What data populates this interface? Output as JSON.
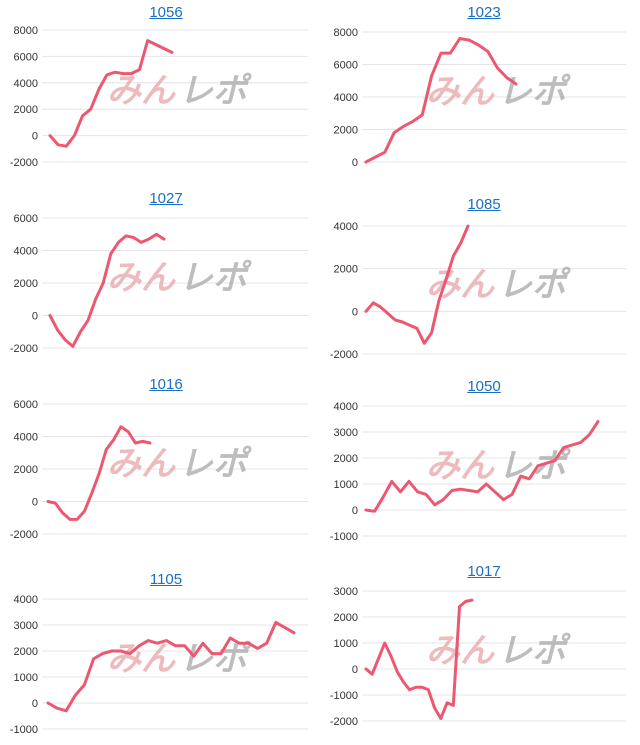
{
  "colors": {
    "line": "#ee5770",
    "link": "#1a6fc4",
    "grid": "#e4e4e4"
  },
  "chart_data": [
    {
      "type": "line",
      "title": "1056",
      "yticks": [
        -2000,
        0,
        2000,
        4000,
        6000,
        8000
      ],
      "ylim": [
        -2000,
        8000
      ],
      "values": [
        0,
        -700,
        -800,
        0,
        1500,
        2000,
        3500,
        4600,
        4800,
        4700,
        4700,
        5000,
        7200,
        6900,
        6600,
        6300
      ]
    },
    {
      "type": "line",
      "title": "1023",
      "yticks": [
        0,
        2000,
        4000,
        6000,
        8000
      ],
      "ylim": [
        0,
        8000
      ],
      "values": [
        0,
        300,
        600,
        1800,
        2200,
        2500,
        2900,
        5300,
        6700,
        6700,
        7600,
        7500,
        7200,
        6800,
        5800,
        5200,
        4800
      ]
    },
    {
      "type": "line",
      "title": "1027",
      "yticks": [
        -2000,
        0,
        2000,
        4000,
        6000
      ],
      "ylim": [
        -2000,
        6000
      ],
      "values": [
        0,
        -900,
        -1500,
        -1900,
        -1000,
        -300,
        1000,
        2000,
        3800,
        4500,
        4900,
        4800,
        4500,
        4700,
        5000,
        4700
      ]
    },
    {
      "type": "line",
      "title": "1085",
      "yticks": [
        -2000,
        0,
        2000,
        4000
      ],
      "ylim": [
        -2000,
        4000
      ],
      "values": [
        0,
        400,
        200,
        -100,
        -400,
        -500,
        -650,
        -800,
        -1500,
        -1000,
        500,
        1500,
        2600,
        3200,
        4000
      ]
    },
    {
      "type": "line",
      "title": "1016",
      "yticks": [
        -2000,
        0,
        2000,
        4000,
        6000
      ],
      "ylim": [
        -2000,
        6000
      ],
      "values": [
        0,
        -100,
        -700,
        -1100,
        -1100,
        -600,
        500,
        1700,
        3200,
        3800,
        4600,
        4300,
        3600,
        3700,
        3600
      ]
    },
    {
      "type": "line",
      "title": "1050",
      "yticks": [
        -1000,
        0,
        1000,
        2000,
        3000,
        4000
      ],
      "ylim": [
        -1000,
        4000
      ],
      "values": [
        0,
        -50,
        500,
        1100,
        700,
        1100,
        700,
        600,
        200,
        400,
        750,
        800,
        750,
        700,
        1000,
        700,
        400,
        600,
        1300,
        1200,
        1700,
        1800,
        1900,
        2400,
        2500,
        2600,
        2900,
        3400
      ]
    },
    {
      "type": "line",
      "title": "1105",
      "yticks": [
        -1000,
        0,
        1000,
        2000,
        3000,
        4000
      ],
      "ylim": [
        -1000,
        4000
      ],
      "values": [
        0,
        -200,
        -300,
        300,
        700,
        1700,
        1900,
        2000,
        2000,
        1900,
        2200,
        2400,
        2300,
        2400,
        2200,
        2200,
        1800,
        2300,
        1900,
        1900,
        2500,
        2300,
        2300,
        2100,
        2300,
        3100,
        2900,
        2700
      ]
    },
    {
      "type": "line",
      "title": "1017",
      "yticks": [
        -2000,
        -1000,
        0,
        1000,
        2000,
        3000
      ],
      "ylim": [
        -2000,
        3000
      ],
      "values": [
        0,
        -200,
        400,
        1000,
        500,
        -100,
        -500,
        -800,
        -700,
        -700,
        -800,
        -1500,
        -1900,
        -1300,
        -1400,
        2400,
        2600,
        2650
      ]
    }
  ]
}
